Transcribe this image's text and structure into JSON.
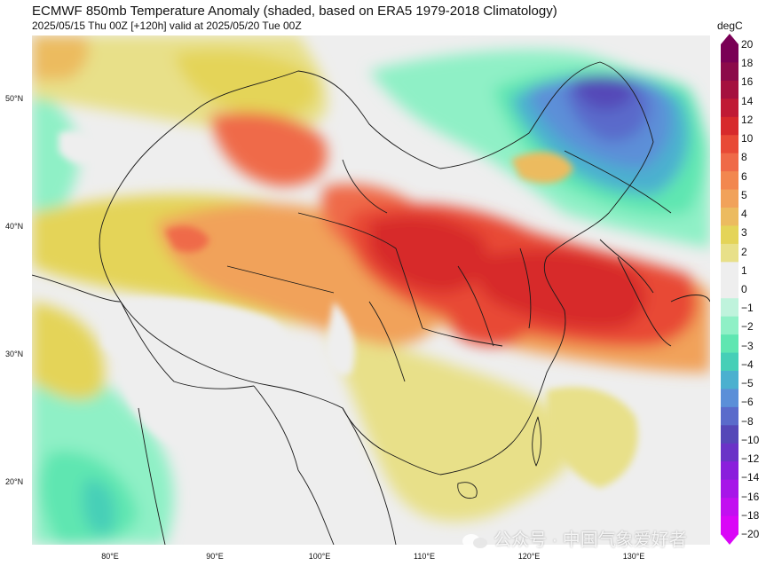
{
  "title": "ECMWF 850mb Temperature Anomaly (shaded, based on ERA5 1979-2018 Climatology)",
  "subtitle": "2025/05/15 Thu 00Z [+120h] valid at 2025/05/20 Tue 00Z",
  "colorbar": {
    "unit": "degC",
    "levels": [
      "20",
      "18",
      "16",
      "14",
      "12",
      "10",
      "8",
      "6",
      "5",
      "4",
      "3",
      "2",
      "1",
      "0",
      "−1",
      "−2",
      "−3",
      "−4",
      "−5",
      "−6",
      "−8",
      "−10",
      "−12",
      "−14",
      "−16",
      "−18",
      "−20"
    ],
    "colors": [
      "#7a0055",
      "#8c0a4a",
      "#a5113f",
      "#c01a35",
      "#d72a2c",
      "#e84a36",
      "#ef6a48",
      "#f2874f",
      "#f1a25a",
      "#ecbb5f",
      "#e4d458",
      "#e8e089",
      "#eeeeee",
      "#eeeeee",
      "#bff3dc",
      "#8ff0c6",
      "#5fe6b1",
      "#46cfb7",
      "#4bb0cf",
      "#5b8fd8",
      "#5a6bcb",
      "#5548b8",
      "#6a33c7",
      "#8a1fdc",
      "#a716e8",
      "#c20ff0",
      "#da06f7"
    ]
  },
  "latitude_labels": [
    "50°N",
    "40°N",
    "30°N",
    "20°N"
  ],
  "longitude_labels": [
    "80°E",
    "90°E",
    "100°E",
    "110°E",
    "120°E",
    "130°E"
  ],
  "watermark": "公众号 · 中国气象爱好者"
}
